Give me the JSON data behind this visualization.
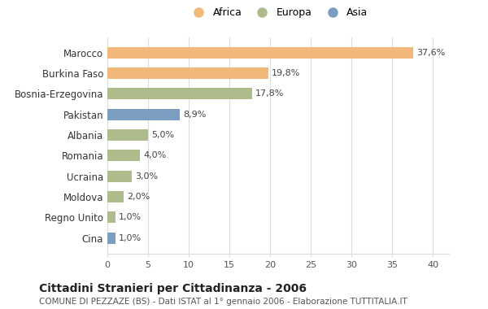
{
  "categories": [
    "Marocco",
    "Burkina Faso",
    "Bosnia-Erzegovina",
    "Pakistan",
    "Albania",
    "Romania",
    "Ucraina",
    "Moldova",
    "Regno Unito",
    "Cina"
  ],
  "values": [
    37.6,
    19.8,
    17.8,
    8.9,
    5.0,
    4.0,
    3.0,
    2.0,
    1.0,
    1.0
  ],
  "labels": [
    "37,6%",
    "19,8%",
    "17,8%",
    "8,9%",
    "5,0%",
    "4,0%",
    "3,0%",
    "2,0%",
    "1,0%",
    "1,0%"
  ],
  "continents": [
    "Africa",
    "Africa",
    "Europa",
    "Asia",
    "Europa",
    "Europa",
    "Europa",
    "Europa",
    "Europa",
    "Asia"
  ],
  "colors": {
    "Africa": "#F0B97A",
    "Europa": "#AEBB8A",
    "Asia": "#7B9DC0"
  },
  "legend_labels": [
    "Africa",
    "Europa",
    "Asia"
  ],
  "title": "Cittadini Stranieri per Cittadinanza - 2006",
  "subtitle": "COMUNE DI PEZZAZE (BS) - Dati ISTAT al 1° gennaio 2006 - Elaborazione TUTTITALIA.IT",
  "xlim": [
    0,
    42
  ],
  "xticks": [
    0,
    5,
    10,
    15,
    20,
    25,
    30,
    35,
    40
  ],
  "bg_color": "#FFFFFF",
  "grid_color": "#DDDDDD",
  "bar_height": 0.55
}
